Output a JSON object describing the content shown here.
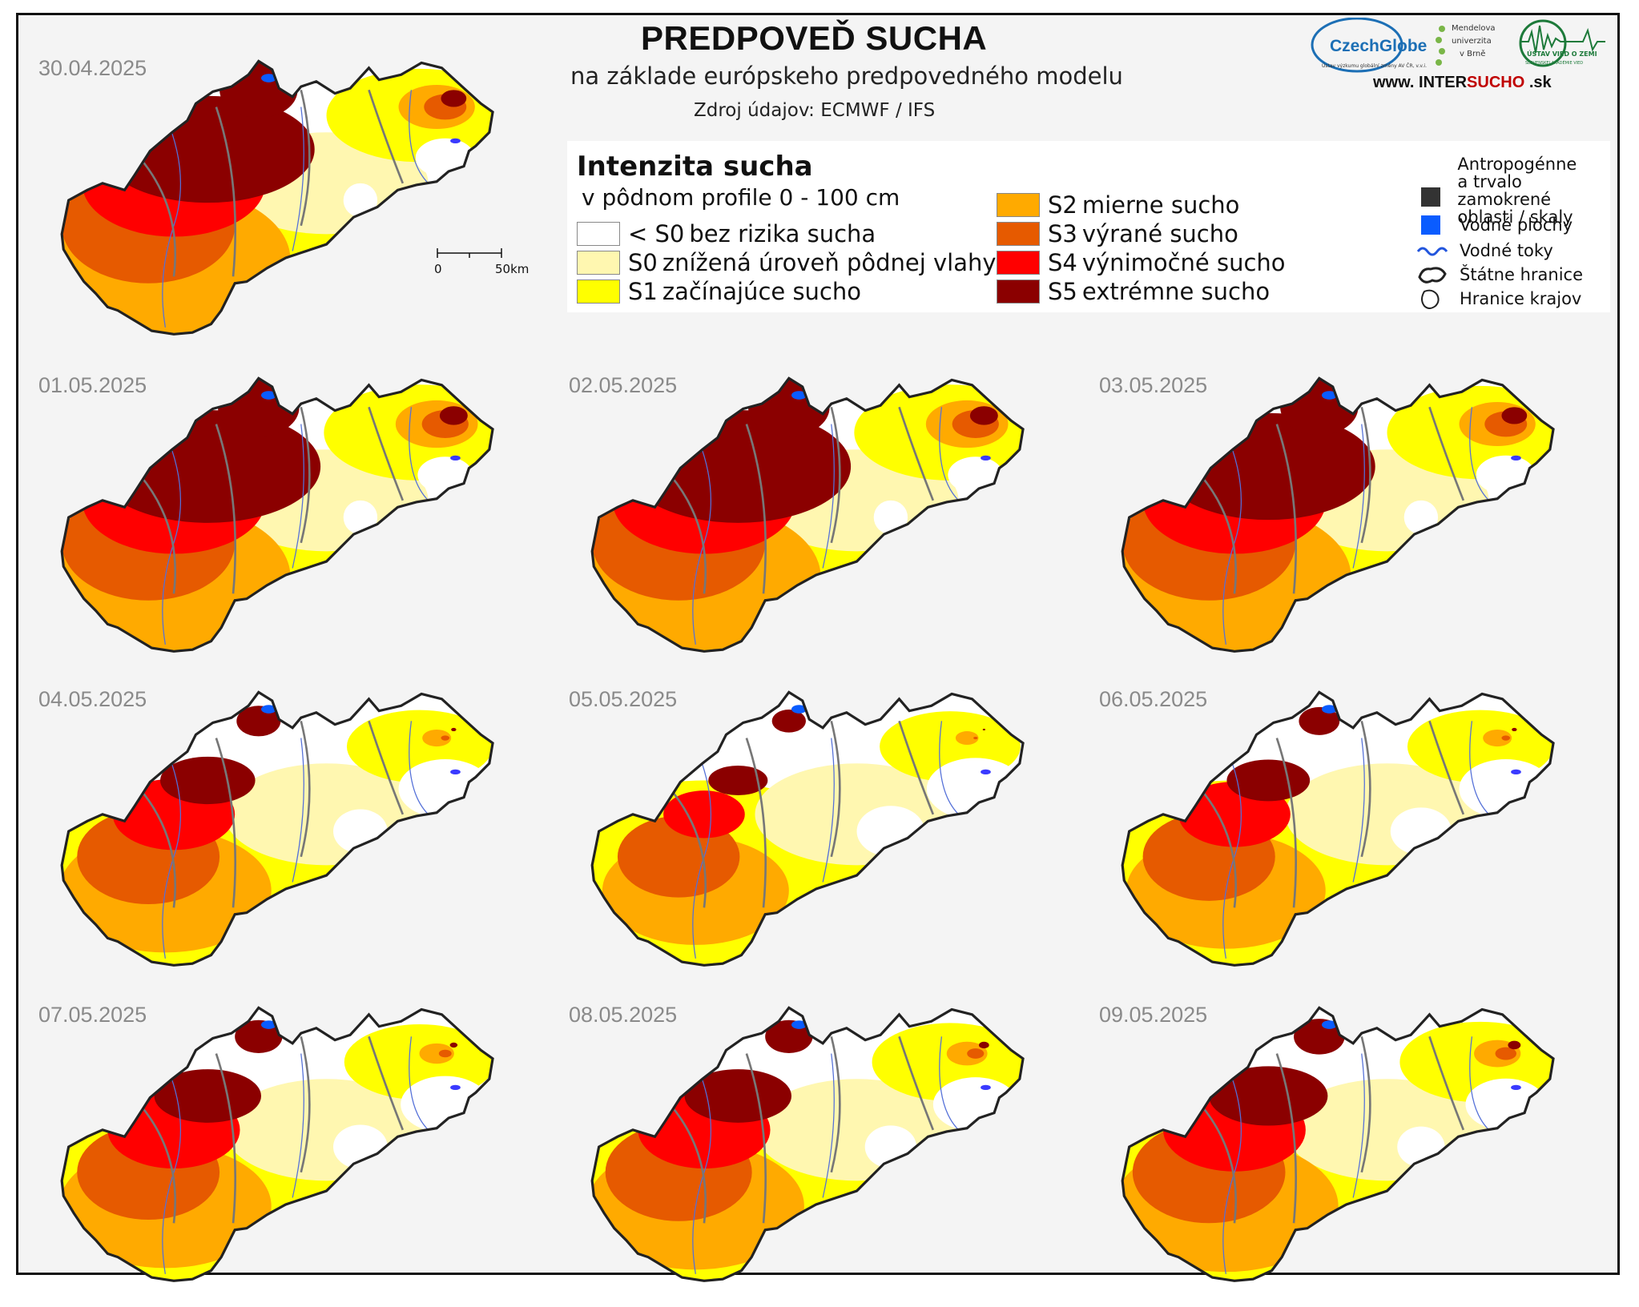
{
  "title": "PREDPOVEĎ SUCHA",
  "subtitle": "na základe európskeho predpovedného modelu",
  "source": "Zdroj údajov: ECMWF / IFS",
  "website": {
    "prefix": "www. INTER",
    "highlight": "SUCHO",
    "suffix": " .sk"
  },
  "logos": {
    "czechglobe": "CzechGlobe",
    "czechglobe_sub": "Ústav výzkumu globální změny AV ČR, v.v.i.",
    "mendel_1": "Mendelova",
    "mendel_2": "univerzita",
    "mendel_3": "v Brně",
    "uvz": "ÚSTAV VIED O ZEMI",
    "uvz_sub": "SLOVENSKEJ AKADÉMIE VIED"
  },
  "legend": {
    "title": "Intenzita sucha",
    "subtitle": "v pôdnom profile 0 - 100 cm",
    "items": [
      {
        "code": "< S0",
        "label": "bez rizika sucha",
        "color": "#ffffff"
      },
      {
        "code": "S0",
        "label": "znížená úroveň pôdnej vlahy",
        "color": "#fff7b0"
      },
      {
        "code": "S1",
        "label": "začínajúce sucho",
        "color": "#ffff00"
      },
      {
        "code": "S2",
        "label": "mierne sucho",
        "color": "#ffaa00"
      },
      {
        "code": "S3",
        "label": "výrané sucho",
        "color": "#e65a00"
      },
      {
        "code": "S4",
        "label": "výnimočné sucho",
        "color": "#ff0000"
      },
      {
        "code": "S5",
        "label": "extrémne sucho",
        "color": "#8b0000"
      }
    ],
    "aux": [
      {
        "label": "Antropogénne a trvalo zamokrené oblasti / skaly",
        "lines": [
          "Antropogénne",
          "a trvalo zamokrené",
          "oblasti / skaly"
        ],
        "symbol": "dark-square",
        "color": "#333333"
      },
      {
        "label": "Vodné plochy",
        "symbol": "blue-square",
        "color": "#0a5cff"
      },
      {
        "label": "Vodné toky",
        "symbol": "river-line",
        "color": "#2255dd"
      },
      {
        "label": "Štátne hranice",
        "symbol": "state-border",
        "color": "#222222"
      },
      {
        "label": "Hranice krajov",
        "symbol": "region-border",
        "color": "#222222"
      }
    ]
  },
  "scalebar": {
    "start": "0",
    "end": "50km"
  },
  "maps": [
    {
      "date": "30.04.2025",
      "levels": {
        "s5": 0.9,
        "s4": 0.9,
        "s3": 0.85,
        "east": 0.5
      }
    },
    {
      "date": "01.05.2025",
      "levels": {
        "s5": 0.95,
        "s4": 0.9,
        "s3": 0.85,
        "east": 0.55
      }
    },
    {
      "date": "02.05.2025",
      "levels": {
        "s5": 0.95,
        "s4": 0.9,
        "s3": 0.85,
        "east": 0.55
      }
    },
    {
      "date": "03.05.2025",
      "levels": {
        "s5": 0.9,
        "s4": 0.9,
        "s3": 0.85,
        "east": 0.5
      }
    },
    {
      "date": "04.05.2025",
      "levels": {
        "s5": 0.4,
        "s4": 0.6,
        "s3": 0.7,
        "east": 0.1
      }
    },
    {
      "date": "05.05.2025",
      "levels": {
        "s5": 0.25,
        "s4": 0.4,
        "s3": 0.6,
        "east": 0.05
      }
    },
    {
      "date": "06.05.2025",
      "levels": {
        "s5": 0.35,
        "s4": 0.55,
        "s3": 0.65,
        "east": 0.1
      }
    },
    {
      "date": "07.05.2025",
      "levels": {
        "s5": 0.45,
        "s4": 0.65,
        "s3": 0.7,
        "east": 0.15
      }
    },
    {
      "date": "08.05.2025",
      "levels": {
        "s5": 0.45,
        "s4": 0.65,
        "s3": 0.72,
        "east": 0.2
      }
    },
    {
      "date": "09.05.2025",
      "levels": {
        "s5": 0.5,
        "s4": 0.7,
        "s3": 0.75,
        "east": 0.25
      }
    }
  ]
}
